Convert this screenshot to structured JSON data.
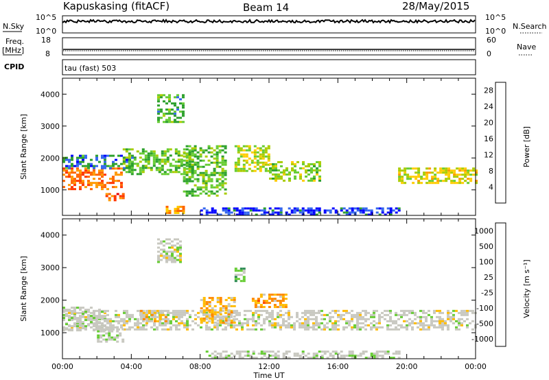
{
  "header": {
    "title_left": "Kapuskasing (fitACF)",
    "title_center": "Beam 14",
    "title_right": "28/May/2015"
  },
  "top_panels": {
    "nsky_label": "N.Sky",
    "nsky_ticks": [
      "10^5",
      "10^0"
    ],
    "nsearch_label": "N.Search",
    "nsearch_ticks": [
      "10^5",
      "10^0"
    ],
    "freq_label": "Freq.",
    "freq_unit": "[MHz]",
    "freq_ticks": [
      "18",
      "8"
    ],
    "nave_label": "Nave",
    "nave_ticks": [
      "60",
      "0"
    ],
    "cpid_label": "CPID",
    "cpid_text": "tau (fast) 503"
  },
  "colors": {
    "power": [
      "#0000ff",
      "#3366ee",
      "#2ca02c",
      "#66cc33",
      "#aacc00",
      "#ffcc00",
      "#ff9900",
      "#ff6600",
      "#ff3300",
      "#e60000"
    ],
    "velocity": [
      "#e60000",
      "#ff4400",
      "#ff8800",
      "#ffbb00",
      "#c8c8c0",
      "#c8c8c0",
      "#66cc33",
      "#2a8a50",
      "#3377cc",
      "#0033cc"
    ],
    "ground_scatter": "#c8c8c0"
  },
  "chart_data": [
    {
      "type": "heatmap",
      "name": "power",
      "ylabel": "Slant Range [km]",
      "yticks": [
        "1000",
        "2000",
        "3000",
        "4000"
      ],
      "ylim": [
        200,
        4500
      ],
      "colorbar_label": "Power [dB]",
      "colorbar_ticks": [
        "4",
        "8",
        "12",
        "16",
        "20",
        "24",
        "28"
      ],
      "colorbar_range": [
        0,
        30
      ],
      "regions": [
        {
          "t": [
            0.0,
            3.5
          ],
          "r": [
            1000,
            1700
          ],
          "v": 22
        },
        {
          "t": [
            0.0,
            4.0
          ],
          "r": [
            1700,
            2100
          ],
          "v": 6
        },
        {
          "t": [
            3.5,
            7.5
          ],
          "r": [
            1500,
            2300
          ],
          "v": 10
        },
        {
          "t": [
            5.5,
            7.0
          ],
          "r": [
            3100,
            4000
          ],
          "v": 9
        },
        {
          "t": [
            7.0,
            9.5
          ],
          "r": [
            800,
            2400
          ],
          "v": 10
        },
        {
          "t": [
            10.0,
            12.0
          ],
          "r": [
            1600,
            2400
          ],
          "v": 14
        },
        {
          "t": [
            12.0,
            15.0
          ],
          "r": [
            1300,
            1900
          ],
          "v": 12
        },
        {
          "t": [
            19.5,
            24.0
          ],
          "r": [
            1200,
            1700
          ],
          "v": 15
        },
        {
          "t": [
            2.5,
            3.5
          ],
          "r": [
            700,
            900
          ],
          "v": 24
        },
        {
          "t": [
            6.0,
            7.0
          ],
          "r": [
            300,
            500
          ],
          "v": 20
        },
        {
          "t": [
            8.0,
            19.5
          ],
          "r": [
            200,
            450
          ],
          "v": 3
        }
      ]
    },
    {
      "type": "heatmap",
      "name": "velocity",
      "xlabel": "Time UT",
      "xticks": [
        "00:00",
        "04:00",
        "08:00",
        "12:00",
        "16:00",
        "20:00",
        "00:00"
      ],
      "xlim": [
        0,
        24
      ],
      "ylabel": "Slant Range [km]",
      "yticks": [
        "1000",
        "2000",
        "3000",
        "4000"
      ],
      "ylim": [
        200,
        4500
      ],
      "colorbar_label": "Velocity [m s⁻¹]",
      "colorbar_ticks": [
        "1000",
        "500",
        "100",
        "25",
        "-25",
        "-100",
        "-500",
        "-1000"
      ],
      "colorbar_range": [
        -1000,
        1000
      ],
      "regions": [
        {
          "t": [
            0.0,
            24.0
          ],
          "r": [
            1100,
            1700
          ],
          "v": 0
        },
        {
          "t": [
            0.0,
            2.5
          ],
          "r": [
            1100,
            1800
          ],
          "v": 60
        },
        {
          "t": [
            2.0,
            3.5
          ],
          "r": [
            700,
            1200
          ],
          "v": 80
        },
        {
          "t": [
            4.5,
            6.0
          ],
          "r": [
            1300,
            1700
          ],
          "v": -200
        },
        {
          "t": [
            8.0,
            10.0
          ],
          "r": [
            1300,
            2100
          ],
          "v": -300
        },
        {
          "t": [
            11.0,
            13.0
          ],
          "r": [
            1800,
            2200
          ],
          "v": -400
        },
        {
          "t": [
            10.0,
            10.5
          ],
          "r": [
            2500,
            3000
          ],
          "v": 300
        },
        {
          "t": [
            5.5,
            6.8
          ],
          "r": [
            3200,
            3900
          ],
          "v": 0
        },
        {
          "t": [
            8.0,
            19.5
          ],
          "r": [
            200,
            450
          ],
          "v": 50
        }
      ]
    }
  ]
}
